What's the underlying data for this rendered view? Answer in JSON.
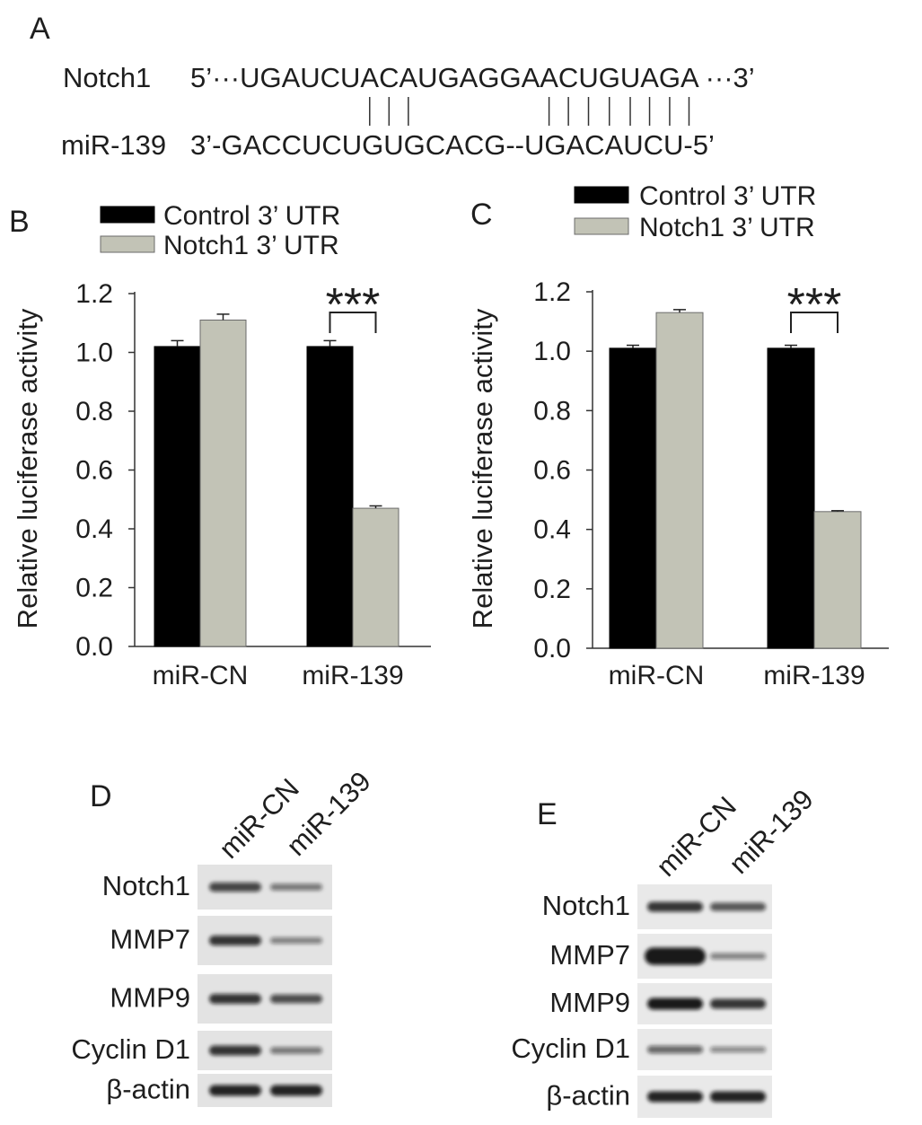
{
  "panel_a": {
    "label": "A",
    "notch1_label": "Notch1",
    "notch1_sequence": "5’···UGAUCUACAUGAGGAACUGUAGA ···3’",
    "mir_label": "miR-139",
    "mir_sequence": "3’-GACCUCUGUGCACG--UGACAUCU-5’"
  },
  "chart_data": [
    {
      "label": "B",
      "type": "bar",
      "categories": [
        "miR-CN",
        "miR-139"
      ],
      "series": [
        {
          "name": "Control 3’ UTR",
          "values": [
            1.02,
            1.02
          ],
          "errors": [
            0.02,
            0.02
          ],
          "color": "#000000"
        },
        {
          "name": "Notch1 3’ UTR",
          "values": [
            1.11,
            0.47
          ],
          "errors": [
            0.02,
            0.008
          ],
          "color": "#c2c3b6"
        }
      ],
      "ylabel": "Relative luciferase activity",
      "ylim": [
        0,
        1.2
      ],
      "yticks": [
        0.0,
        0.2,
        0.4,
        0.6,
        0.8,
        1.0,
        1.2
      ],
      "grid": false,
      "legend": "top-left",
      "annotations": [
        {
          "category": "miR-139",
          "text": "***"
        }
      ]
    },
    {
      "label": "C",
      "type": "bar",
      "categories": [
        "miR-CN",
        "miR-139"
      ],
      "series": [
        {
          "name": "Control 3’ UTR",
          "values": [
            1.01,
            1.01
          ],
          "errors": [
            0.01,
            0.01
          ],
          "color": "#000000"
        },
        {
          "name": "Notch1 3’ UTR",
          "values": [
            1.13,
            0.46
          ],
          "errors": [
            0.01,
            0.003
          ],
          "color": "#c2c3b6"
        }
      ],
      "ylabel": "Relative luciferase activity",
      "ylim": [
        0,
        1.2
      ],
      "yticks": [
        0.0,
        0.2,
        0.4,
        0.6,
        0.8,
        1.0,
        1.2
      ],
      "grid": false,
      "legend": "top",
      "annotations": [
        {
          "category": "miR-139",
          "text": "***"
        }
      ]
    }
  ],
  "blots": [
    {
      "label": "D",
      "lanes": [
        "miR-CN",
        "miR-139"
      ],
      "strip_color": "#e3e3e3",
      "rows": [
        {
          "protein": "Notch1",
          "band_intensity": [
            0.8,
            0.5
          ]
        },
        {
          "protein": "MMP7",
          "band_intensity": [
            0.9,
            0.45
          ]
        },
        {
          "protein": "MMP9",
          "band_intensity": [
            0.9,
            0.75
          ]
        },
        {
          "protein": "Cyclin D1",
          "band_intensity": [
            0.9,
            0.5
          ]
        },
        {
          "protein": "β-actin",
          "band_intensity": [
            1.0,
            1.0
          ]
        }
      ]
    },
    {
      "label": "E",
      "lanes": [
        "miR-CN",
        "miR-139"
      ],
      "strip_color": "#e9e9e9",
      "rows": [
        {
          "protein": "Notch1",
          "band_intensity": [
            0.9,
            0.7
          ]
        },
        {
          "protein": "MMP7",
          "band_intensity": [
            1.8,
            0.45
          ]
        },
        {
          "protein": "MMP9",
          "band_intensity": [
            1.1,
            0.9
          ]
        },
        {
          "protein": "Cyclin D1",
          "band_intensity": [
            0.6,
            0.4
          ]
        },
        {
          "protein": "β-actin",
          "band_intensity": [
            1.0,
            1.0
          ]
        }
      ]
    }
  ],
  "colors": {
    "text": "#1e1e1e",
    "band": "#111111",
    "bar_outline": "#6b6b6b"
  }
}
